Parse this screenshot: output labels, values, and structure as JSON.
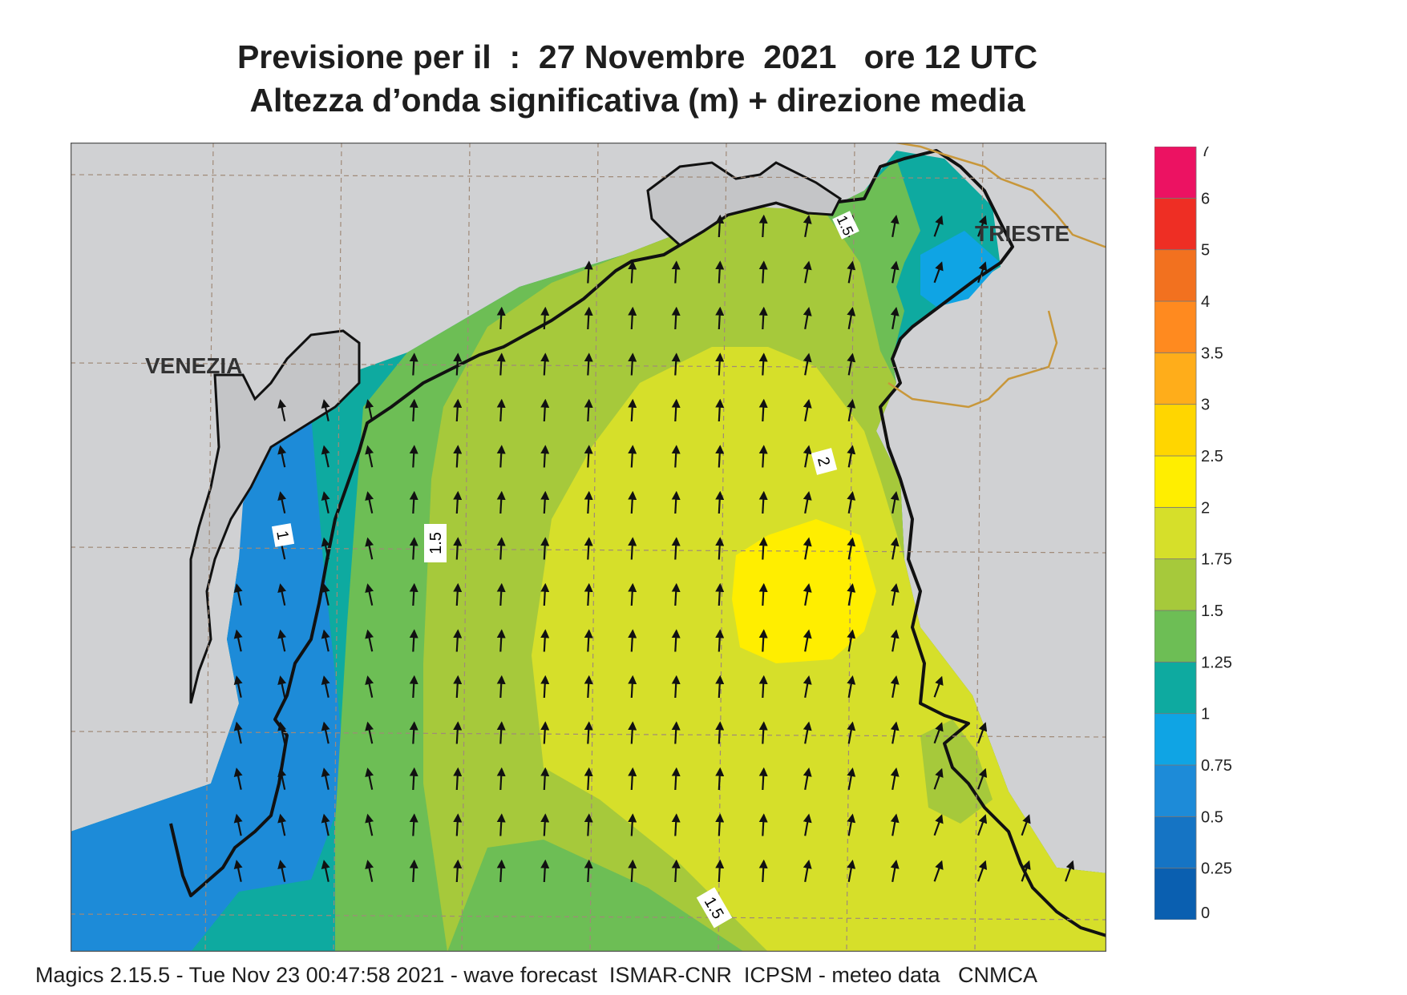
{
  "header": {
    "line1": "Previsione per il  :  27 Novembre  2021   ore 12 UTC",
    "line2": "Altezza d’onda significativa (m) + direzione media"
  },
  "map": {
    "places": [
      {
        "id": "venezia",
        "name": "VENEZIA"
      },
      {
        "id": "trieste",
        "name": "TRIESTE"
      }
    ],
    "contour_labels": [
      "1",
      "1.5",
      "2",
      "1.5",
      "1.5"
    ],
    "land_color": "#d0d1d3",
    "coast_color": "#111111",
    "border_color": "#c8973a",
    "grid_color": "#a08a78",
    "arrow_icon": "arrow-icon",
    "mean_direction": "toward north / north-north-east"
  },
  "legend": {
    "labels": [
      "7",
      "6",
      "5",
      "4",
      "3.5",
      "3",
      "2.5",
      "2",
      "1.75",
      "1.5",
      "1.25",
      "1",
      "0.75",
      "0.5",
      "0.25",
      "0"
    ],
    "colors": [
      "#0a5fb0",
      "#1574c4",
      "#1d8bd8",
      "#0fa4e4",
      "#0eaaa0",
      "#6dbe55",
      "#a6c93b",
      "#d6df2a",
      "#ffee00",
      "#ffd600",
      "#ffad1a",
      "#ff8a1f",
      "#f2711f",
      "#ee2e24",
      "#ec1262"
    ]
  },
  "footer": {
    "text": "Magics 2.15.5 - Tue Nov 23 00:47:58 2021 - wave forecast  ISMAR-CNR  ICPSM - meteo data   CNMCA"
  }
}
